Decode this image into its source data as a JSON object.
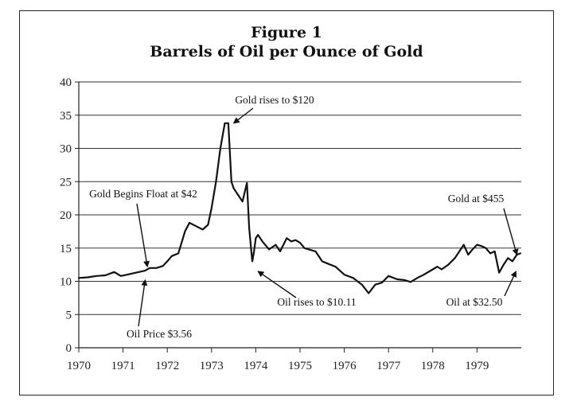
{
  "chart_data": {
    "type": "line",
    "title": "Figure 1",
    "subtitle": "Barrels of Oil per Ounce of Gold",
    "xlabel": "",
    "ylabel": "",
    "xlim": [
      1970,
      1980
    ],
    "ylim": [
      0,
      40
    ],
    "grid": true,
    "x_ticks": [
      "1970",
      "1971",
      "1972",
      "1973",
      "1974",
      "1975",
      "1976",
      "1977",
      "1978",
      "1979"
    ],
    "y_ticks": [
      "0",
      "5",
      "10",
      "15",
      "20",
      "25",
      "30",
      "35",
      "40"
    ],
    "series": [
      {
        "x": [
          1970.0,
          1970.2,
          1970.4,
          1970.6,
          1970.8,
          1970.95,
          1971.1,
          1971.3,
          1971.5,
          1971.6,
          1971.75,
          1971.9,
          1972.0,
          1972.1,
          1972.25,
          1972.4,
          1972.5,
          1972.65,
          1972.8,
          1972.92,
          1973.0,
          1973.1,
          1973.2,
          1973.3,
          1973.38,
          1973.45,
          1973.5,
          1973.55,
          1973.6,
          1973.7,
          1973.8,
          1973.85,
          1973.92,
          1973.96,
          1974.0,
          1974.05,
          1974.15,
          1974.3,
          1974.45,
          1974.55,
          1974.7,
          1974.8,
          1974.9,
          1975.0,
          1975.1,
          1975.2,
          1975.35,
          1975.5,
          1975.65,
          1975.8,
          1976.0,
          1976.2,
          1976.4,
          1976.55,
          1976.7,
          1976.85,
          1977.0,
          1977.2,
          1977.35,
          1977.5,
          1977.65,
          1977.8,
          1978.0,
          1978.1,
          1978.2,
          1978.35,
          1978.5,
          1978.6,
          1978.7,
          1978.8,
          1978.9,
          1979.0,
          1979.1,
          1979.2,
          1979.3,
          1979.4,
          1979.5,
          1979.6,
          1979.7,
          1979.8,
          1979.9,
          1979.98
        ],
        "values": [
          10.5,
          10.6,
          10.8,
          10.9,
          11.4,
          10.8,
          11.0,
          11.3,
          11.6,
          12.0,
          12.0,
          12.3,
          13.0,
          13.8,
          14.2,
          17.5,
          18.8,
          18.3,
          17.8,
          18.5,
          21.0,
          25.0,
          30.0,
          33.8,
          33.8,
          25.0,
          24.0,
          23.5,
          23.0,
          22.0,
          24.8,
          18.0,
          13.0,
          14.5,
          16.5,
          17.0,
          16.0,
          14.8,
          15.5,
          14.5,
          16.5,
          16.0,
          16.2,
          15.8,
          15.0,
          14.8,
          14.5,
          13.0,
          12.6,
          12.2,
          11.0,
          10.5,
          9.5,
          8.2,
          9.5,
          9.8,
          10.8,
          10.3,
          10.2,
          9.9,
          10.5,
          11.0,
          11.8,
          12.2,
          11.8,
          12.5,
          13.5,
          14.5,
          15.5,
          14.0,
          14.8,
          15.5,
          15.3,
          15.0,
          14.2,
          14.5,
          11.3,
          12.5,
          13.5,
          13.0,
          14.0,
          14.2
        ]
      }
    ],
    "annotations": [
      {
        "text": "Gold rises to $120",
        "x": 1973.5,
        "y": 33.8
      },
      {
        "text": "Gold Begins Float at $42",
        "x": 1971.55,
        "y": 12.2
      },
      {
        "text": "Oil Price $3.56",
        "x": 1971.5,
        "y": 10.2
      },
      {
        "text": "Oil rises to $10.11",
        "x": 1974.05,
        "y": 11.5
      },
      {
        "text": "Gold at $455",
        "x": 1979.9,
        "y": 14.0
      },
      {
        "text": "Oil at $32.50",
        "x": 1979.88,
        "y": 11.5
      }
    ]
  }
}
